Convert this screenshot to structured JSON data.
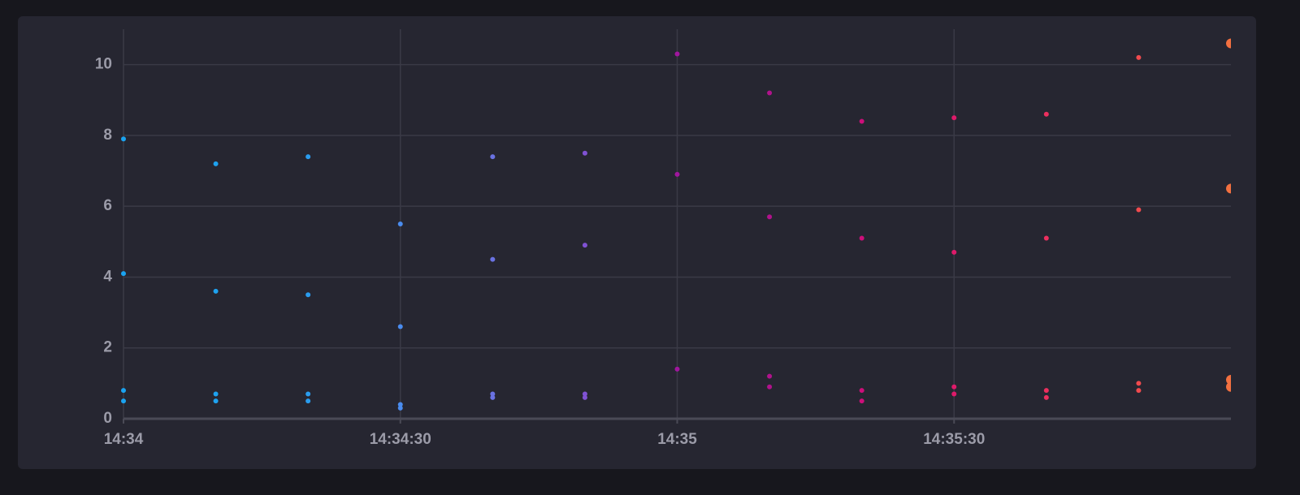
{
  "chart_data": {
    "type": "scatter",
    "x": [
      "14:34:00",
      "14:34:10",
      "14:34:20",
      "14:34:30",
      "14:34:40",
      "14:34:50",
      "14:35:00",
      "14:35:10",
      "14:35:20",
      "14:35:30",
      "14:35:40",
      "14:35:50",
      "14:36:00"
    ],
    "colors": [
      "#1aa3f0",
      "#1ea2ef",
      "#2a9cee",
      "#4a8cef",
      "#6a72e2",
      "#8052d4",
      "#a0169e",
      "#b0128c",
      "#cc0f7a",
      "#de1a6a",
      "#ec2f5e",
      "#f04a4e",
      "#f27040"
    ],
    "series": [
      {
        "values": [
          7.9,
          7.2,
          7.4,
          5.5,
          7.4,
          7.5,
          10.3,
          9.2,
          8.4,
          8.5,
          8.6,
          10.2,
          10.6
        ]
      },
      {
        "values": [
          4.1,
          3.6,
          3.5,
          2.6,
          4.5,
          4.9,
          6.9,
          5.7,
          5.1,
          4.7,
          5.1,
          5.9,
          6.5
        ]
      },
      {
        "values": [
          0.8,
          0.7,
          0.7,
          0.4,
          0.7,
          0.7,
          1.4,
          1.2,
          0.8,
          0.9,
          0.8,
          1.0,
          1.1
        ]
      },
      {
        "values": [
          0.5,
          0.5,
          0.5,
          0.3,
          0.6,
          0.6,
          null,
          0.9,
          0.5,
          0.7,
          0.6,
          0.8,
          0.9
        ]
      }
    ],
    "xlim": [
      "14:34:00",
      "14:36:00"
    ],
    "xticks": [
      {
        "value": "14:34:00",
        "label": "14:34"
      },
      {
        "value": "14:34:30",
        "label": "14:34:30"
      },
      {
        "value": "14:35:00",
        "label": "14:35"
      },
      {
        "value": "14:35:30",
        "label": "14:35:30"
      }
    ],
    "ylim": [
      0,
      11
    ],
    "yticks": [
      0,
      2,
      4,
      6,
      8,
      10
    ],
    "grid": true
  }
}
